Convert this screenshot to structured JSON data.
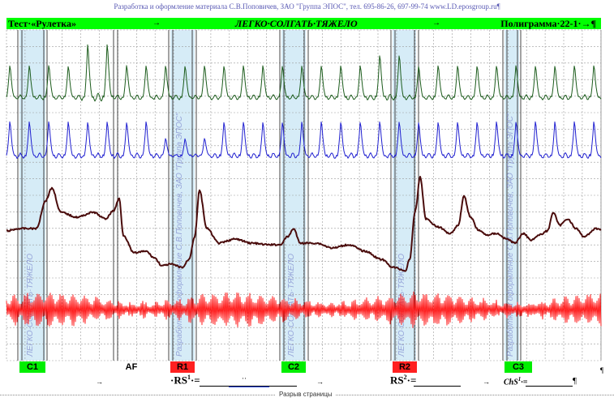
{
  "credit": "Разработка и оформление материала С.В.Поповичев, ЗАО \"Группа ЭПОС\", тел. 695-86-26, 697-99-74 www.LD.eposgroup.ru¶",
  "header": {
    "left": "Тест·«Рулетка»",
    "center": "ЛЕГКО·СОЛГАТЬ·ТЯЖЕЛО",
    "right": "Полиграмма·22-1·→¶",
    "arrow": "→"
  },
  "watermark": "ЛЕГКО·СОЛГАТЬ·ТЯЖЕЛО",
  "watermark_credit": "Разработка и оформление С.В.Поповичев, ЗАО \"Группа ЭПОС\"",
  "stimulus_labels": [
    {
      "text": "C1",
      "color": "#00ee00"
    },
    {
      "text": "AF",
      "color": "#ffffff"
    },
    {
      "text": "R1",
      "color": "#ff2020"
    },
    {
      "text": "C2",
      "color": "#00ee00"
    },
    {
      "text": "R2",
      "color": "#ff2020"
    },
    {
      "text": "C3",
      "color": "#00ee00"
    }
  ],
  "bottom": {
    "arrow": "→",
    "rs1": "·RS",
    "rs1_sup": "1",
    "rs1_eq": "·=",
    "dots": "··",
    "rs2": "RS",
    "rs2_sup": "2",
    "rs2_eq": "·=",
    "chs": "ChS",
    "chs_sup": "1",
    "chs_eq": "·=",
    "pilcrow": "¶",
    "pilcrow_end": "¶"
  },
  "page_break": "Разрыв страницы",
  "colors": {
    "grid": "#9a9a9a",
    "channel1": "#1c5c1c",
    "channel2": "#1f1fd0",
    "channel3": "#4a0c0c",
    "channel4": "#ff1010",
    "header_bg": "#00ff00",
    "zone": "#c8e6f4"
  }
}
